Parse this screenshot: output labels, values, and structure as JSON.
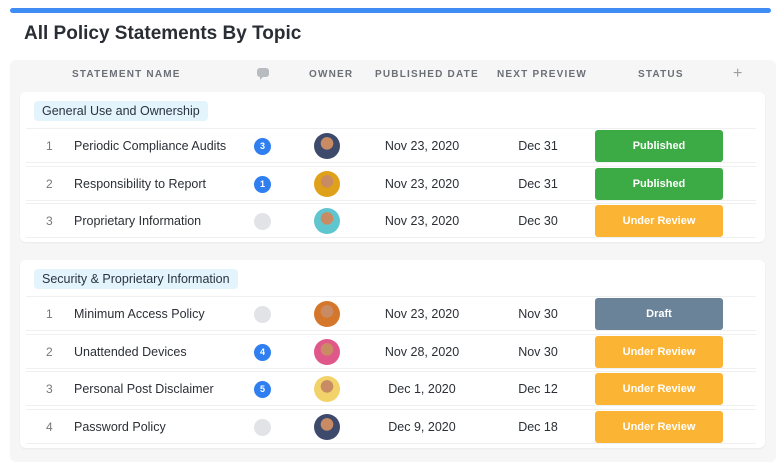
{
  "title": "All Policy Statements By Topic",
  "columns": {
    "name": "STATEMENT NAME",
    "owner": "OWNER",
    "published": "PUBLISHED DATE",
    "next": "NEXT PREVIEW",
    "status": "STATUS",
    "add": "+"
  },
  "colors": {
    "Published": "#3dab45",
    "Under Review": "#fbb434",
    "Draft": "#6a8399"
  },
  "groups": [
    {
      "label": "General Use and Ownership",
      "rows": [
        {
          "num": "1",
          "name": "Periodic Compliance Audits",
          "comments": "3",
          "published": "Nov 23, 2020",
          "next": "Dec 31",
          "status": "Published",
          "avatar": "#3d4a6b"
        },
        {
          "num": "2",
          "name": "Responsibility to Report",
          "comments": "1",
          "published": "Nov 23, 2020",
          "next": "Dec 31",
          "status": "Published",
          "avatar": "#e0a11a"
        },
        {
          "num": "3",
          "name": "Proprietary Information",
          "comments": "",
          "published": "Nov 23, 2020",
          "next": "Dec 30",
          "status": "Under Review",
          "avatar": "#5fc6cf"
        }
      ]
    },
    {
      "label": "Security & Proprietary Information",
      "rows": [
        {
          "num": "1",
          "name": "Minimum Access Policy",
          "comments": "",
          "published": "Nov 23, 2020",
          "next": "Nov 30",
          "status": "Draft",
          "avatar": "#d4772a"
        },
        {
          "num": "2",
          "name": "Unattended Devices",
          "comments": "4",
          "published": "Nov 28, 2020",
          "next": "Nov 30",
          "status": "Under Review",
          "avatar": "#e0578a"
        },
        {
          "num": "3",
          "name": "Personal Post Disclaimer",
          "comments": "5",
          "published": "Dec 1, 2020",
          "next": "Dec 12",
          "status": "Under Review",
          "avatar": "#f1d36a"
        },
        {
          "num": "4",
          "name": "Password Policy",
          "comments": "",
          "published": "Dec 9, 2020",
          "next": "Dec 18",
          "status": "Under Review",
          "avatar": "#3d4a6b"
        }
      ]
    }
  ]
}
